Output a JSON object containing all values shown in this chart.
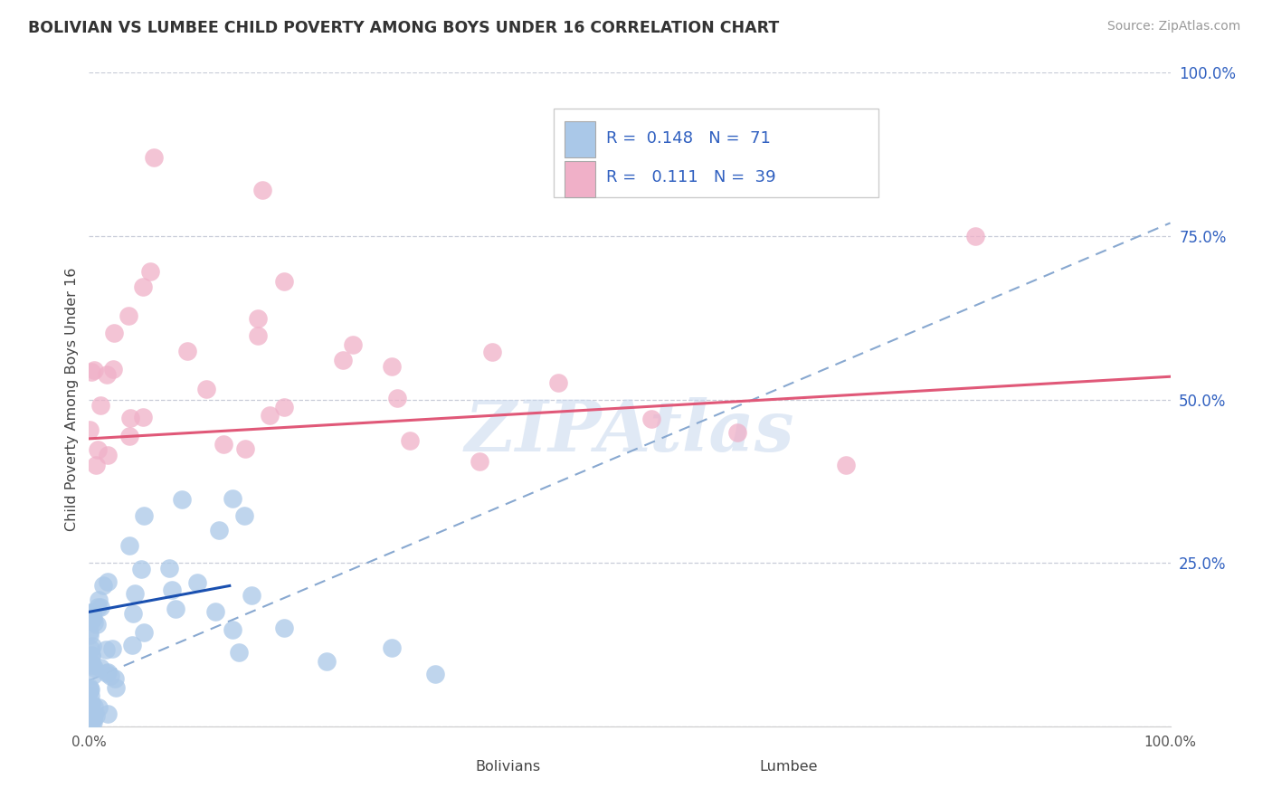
{
  "title": "BOLIVIAN VS LUMBEE CHILD POVERTY AMONG BOYS UNDER 16 CORRELATION CHART",
  "source": "Source: ZipAtlas.com",
  "ylabel": "Child Poverty Among Boys Under 16",
  "xlim": [
    0,
    1
  ],
  "ylim": [
    0,
    1
  ],
  "yticks": [
    0.0,
    0.25,
    0.5,
    0.75,
    1.0
  ],
  "ytick_labels": [
    "",
    "25.0%",
    "50.0%",
    "75.0%",
    "100.0%"
  ],
  "blue_color": "#aac8e8",
  "pink_color": "#f0b0c8",
  "blue_line_color": "#1a50b0",
  "pink_line_color": "#e05878",
  "dashed_line_color": "#88a8d0",
  "grid_color": "#c8ccd8",
  "title_color": "#333333",
  "legend_text_color": "#3060c0",
  "watermark_color": "#c8d8ee",
  "background_color": "#ffffff",
  "blue_line_x": [
    0.0,
    0.13
  ],
  "blue_line_y": [
    0.175,
    0.215
  ],
  "pink_line_x": [
    0.0,
    1.0
  ],
  "pink_line_y": [
    0.44,
    0.535
  ],
  "dash_line_x": [
    0.0,
    1.0
  ],
  "dash_line_y": [
    0.07,
    0.77
  ]
}
